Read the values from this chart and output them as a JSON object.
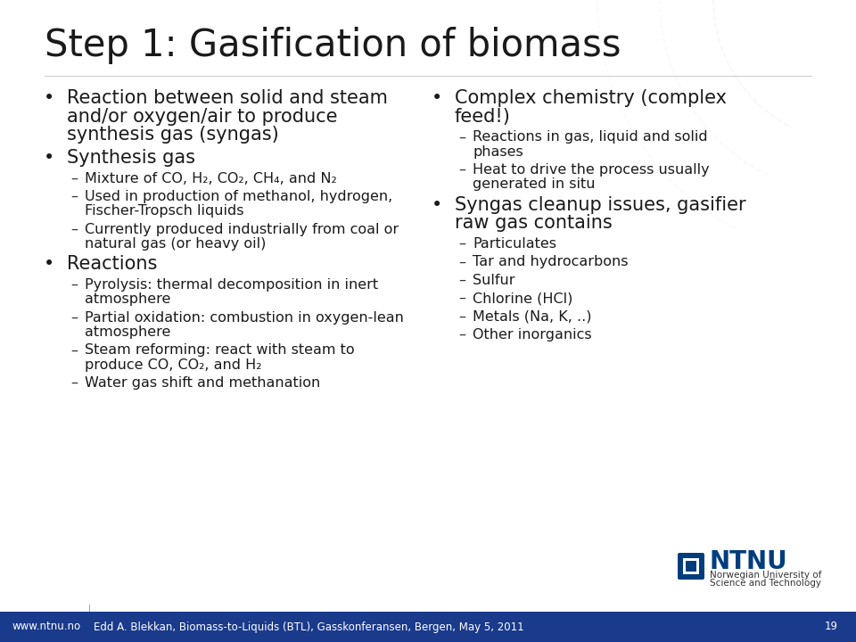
{
  "title": "Step 1: Gasification of biomass",
  "bg_color": "#ffffff",
  "footer_color": "#1a3a8c",
  "footer_text": "Edd A. Blekkan, Biomass-to-Liquids (BTL), Gasskonferansen, Bergen, May 5, 2011",
  "footer_page": "19",
  "footer_url": "www.ntnu.no",
  "left_bullets": [
    {
      "level": 0,
      "text": "Reaction between solid and steam\nand/or oxygen/air to produce\nsynthesis gas (syngas)"
    },
    {
      "level": 0,
      "text": "Synthesis gas"
    },
    {
      "level": 1,
      "text": "Mixture of CO, H₂, CO₂, CH₄, and N₂"
    },
    {
      "level": 1,
      "text": "Used in production of methanol, hydrogen,\nFischer-Tropsch liquids"
    },
    {
      "level": 1,
      "text": "Currently produced industrially from coal or\nnatural gas (or heavy oil)"
    },
    {
      "level": 0,
      "text": "Reactions"
    },
    {
      "level": 1,
      "text": "Pyrolysis: thermal decomposition in inert\natmosphere"
    },
    {
      "level": 1,
      "text": "Partial oxidation: combustion in oxygen-lean\natmosphere"
    },
    {
      "level": 1,
      "text": "Steam reforming: react with steam to\nproduce CO, CO₂, and H₂"
    },
    {
      "level": 1,
      "text": "Water gas shift and methanation"
    }
  ],
  "right_bullets": [
    {
      "level": 0,
      "text": "Complex chemistry (complex\nfeed!)"
    },
    {
      "level": 1,
      "text": "Reactions in gas, liquid and solid\nphases"
    },
    {
      "level": 1,
      "text": "Heat to drive the process usually\ngenerated in situ"
    },
    {
      "level": 0,
      "text": "Syngas cleanup issues, gasifier\nraw gas contains"
    },
    {
      "level": 1,
      "text": "Particulates"
    },
    {
      "level": 1,
      "text": "Tar and hydrocarbons"
    },
    {
      "level": 1,
      "text": "Sulfur"
    },
    {
      "level": 1,
      "text": "Chlorine (HCl)"
    },
    {
      "level": 1,
      "text": "Metals (Na, K, ..)"
    },
    {
      "level": 1,
      "text": "Other inorganics"
    }
  ],
  "title_fontsize": 30,
  "bullet0_fontsize": 15,
  "bullet1_fontsize": 11.5,
  "ntnu_blue": "#003d7c"
}
